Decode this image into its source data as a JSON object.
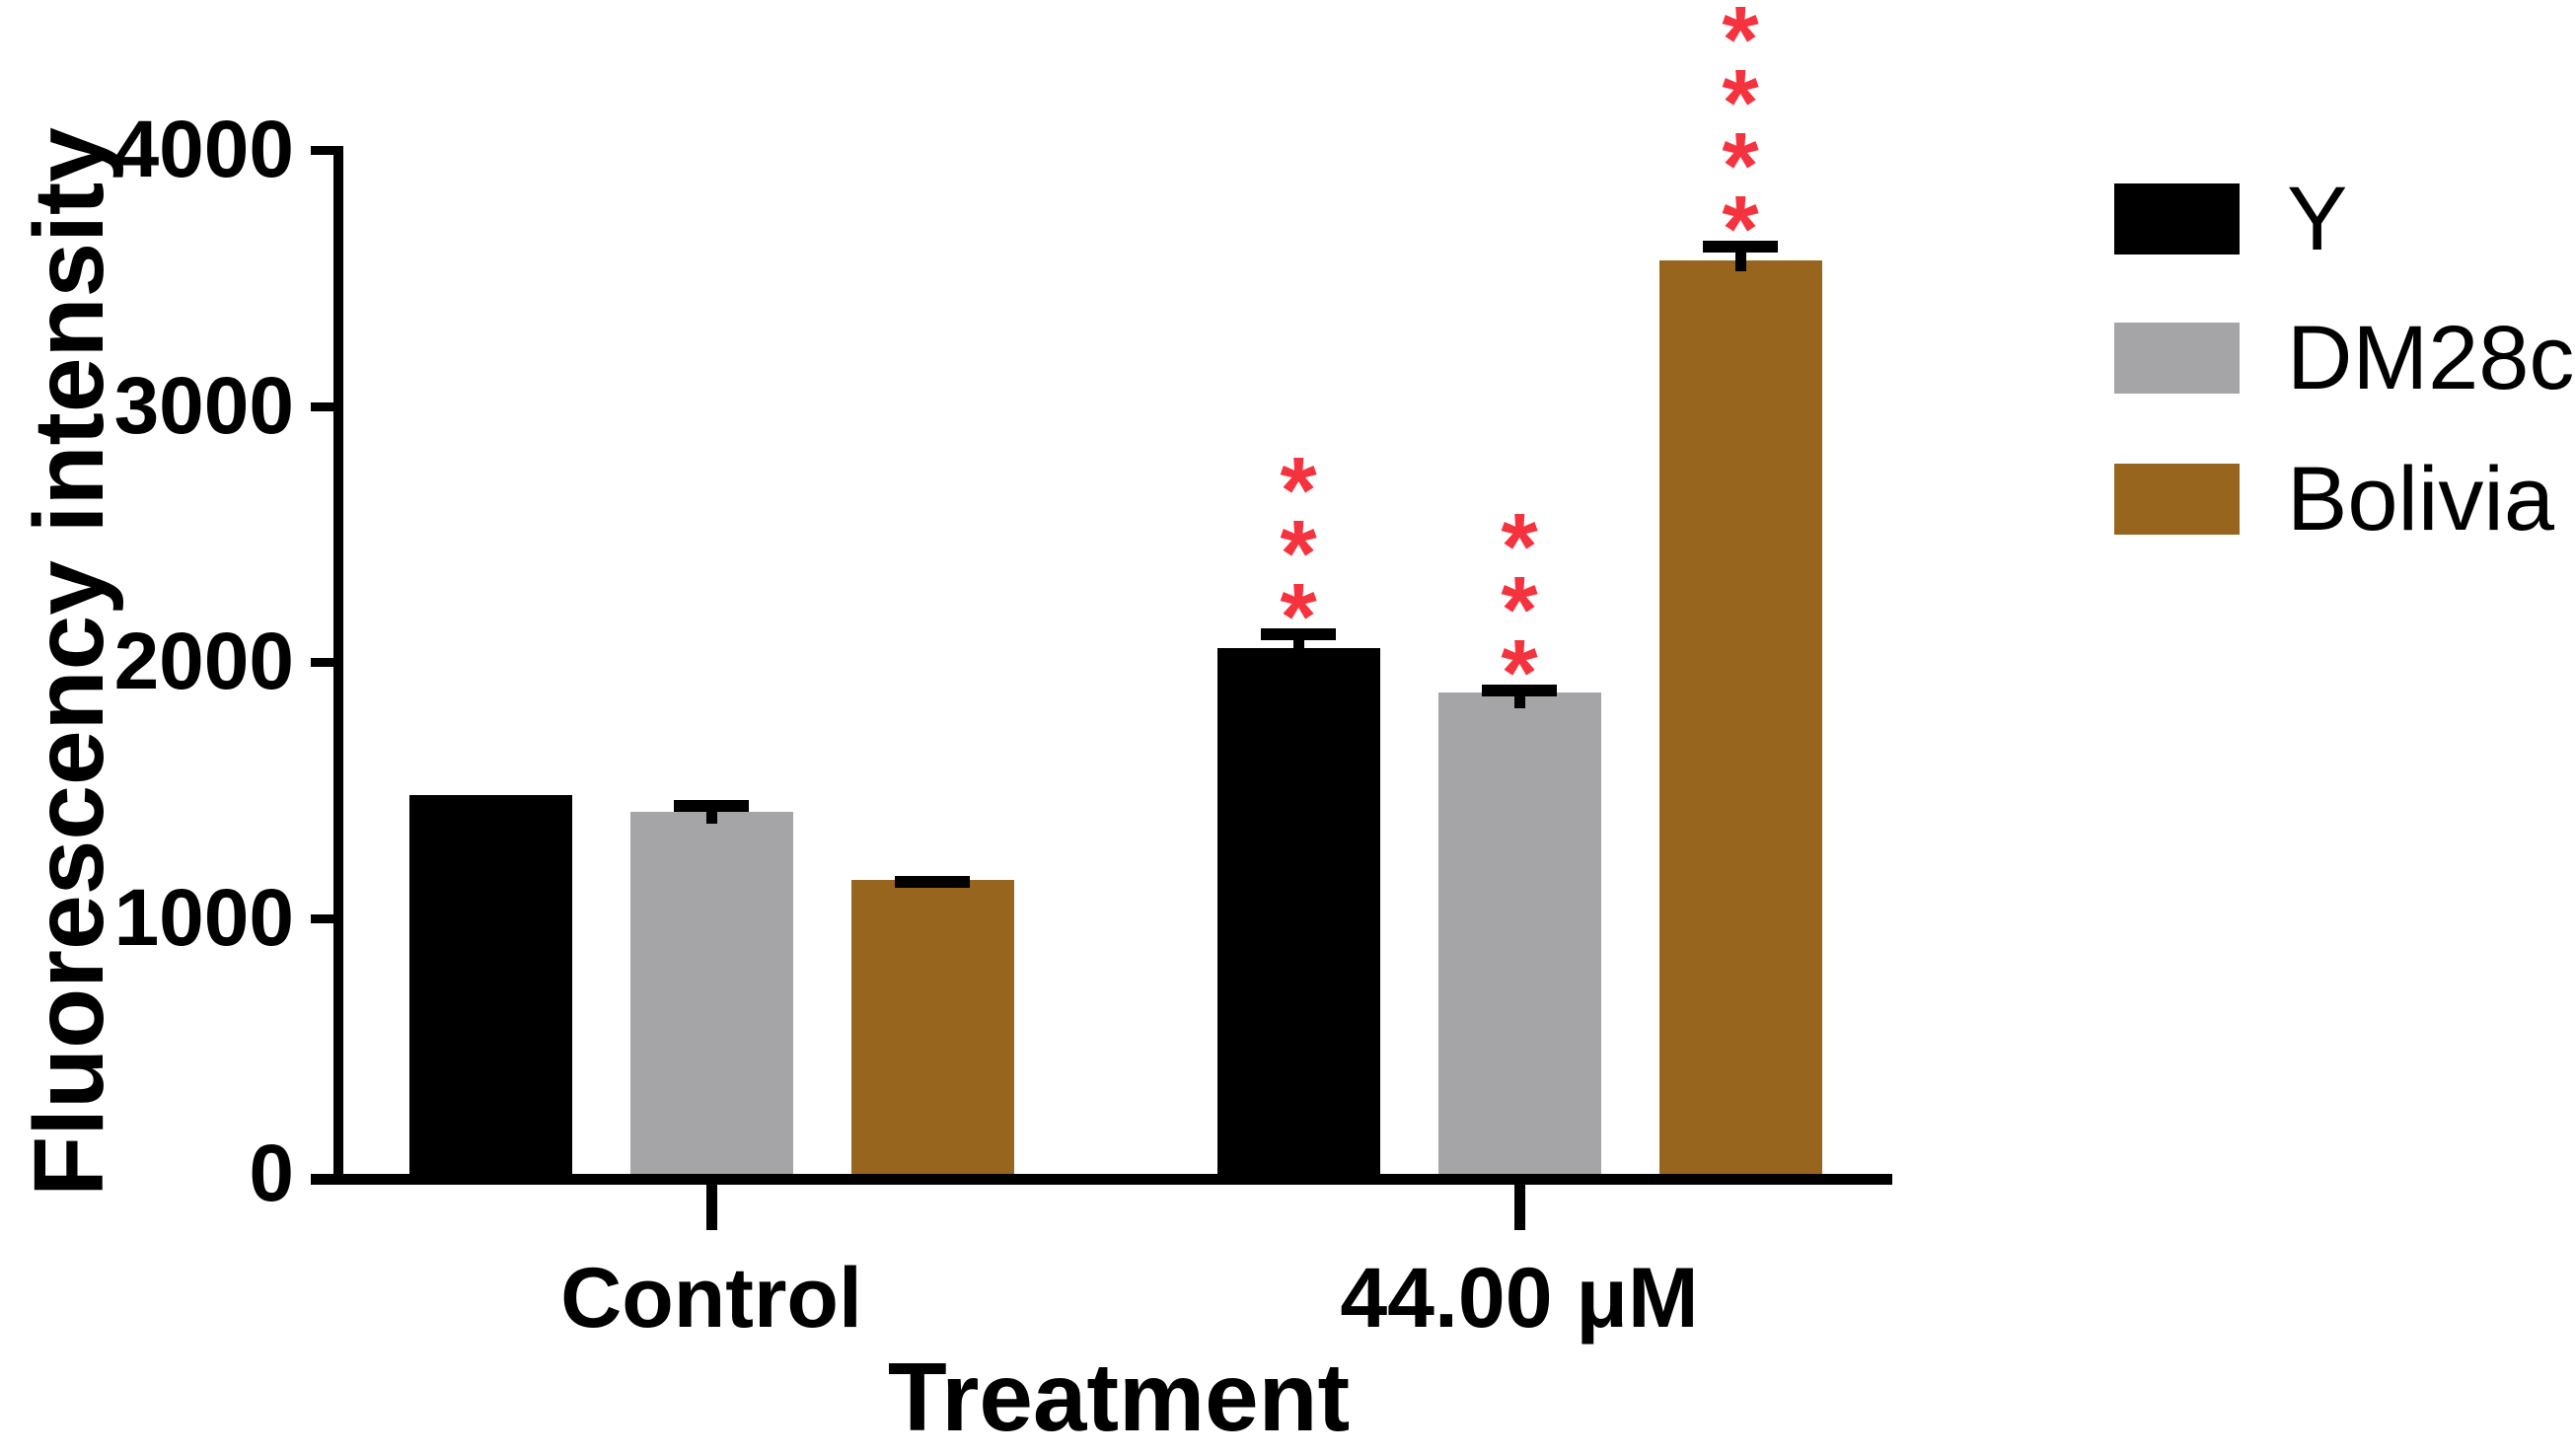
{
  "figure": {
    "background": "#ffffff",
    "axis_color": "#000000",
    "significance_color": "#F5333F"
  },
  "chart_data": {
    "type": "bar",
    "title": "",
    "xlabel": "Treatment",
    "ylabel": "Fluorescency intensity",
    "ylim": [
      0,
      4000
    ],
    "yticks": [
      0,
      1000,
      2000,
      3000,
      4000
    ],
    "grid": false,
    "legend_position": "right",
    "error_bars": "upper only, with caps",
    "categories": [
      "Control",
      "44.00 μM"
    ],
    "series": [
      {
        "name": "Y",
        "color": "#000000",
        "values": [
          1480,
          2055
        ],
        "errors": [
          0,
          75
        ],
        "significance": [
          "",
          "***"
        ]
      },
      {
        "name": "DM28c",
        "color": "#A5A5A8",
        "values": [
          1415,
          1880
        ],
        "errors": [
          45,
          30
        ],
        "significance": [
          "",
          "***"
        ]
      },
      {
        "name": "Bolivia",
        "color": "#97651E",
        "values": [
          1150,
          3570
        ],
        "errors": [
          15,
          75
        ],
        "significance": [
          "",
          "****"
        ]
      }
    ]
  }
}
